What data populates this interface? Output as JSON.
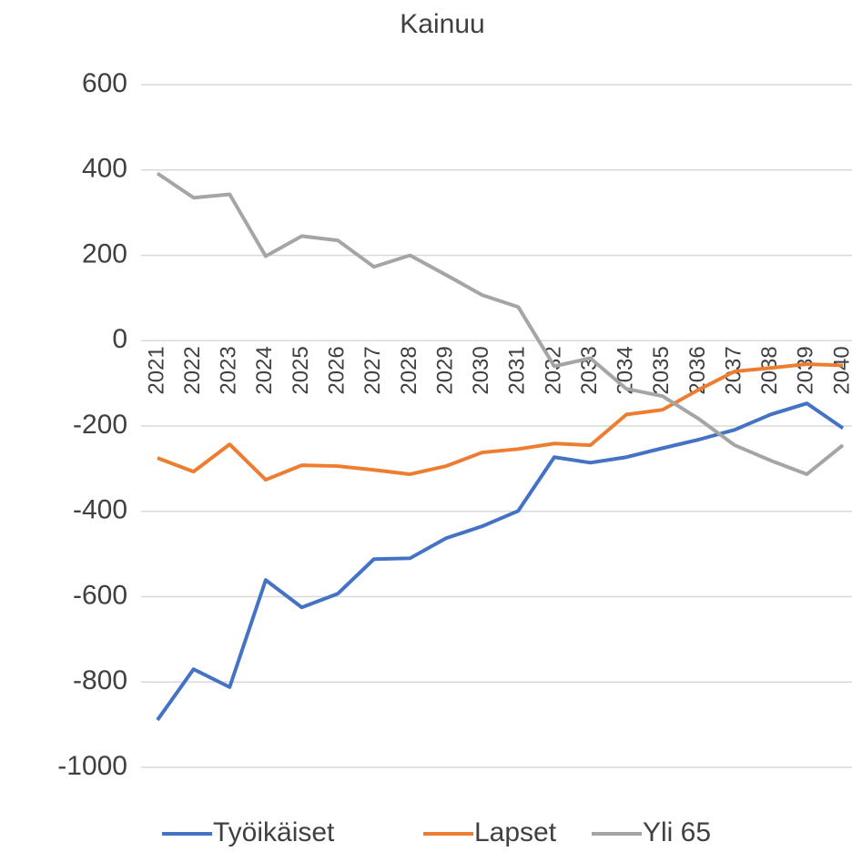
{
  "chart_data": {
    "type": "line",
    "title": "Kainuu",
    "categories": [
      "2021",
      "2022",
      "2023",
      "2024",
      "2025",
      "2026",
      "2027",
      "2028",
      "2029",
      "2030",
      "2031",
      "2032",
      "2033",
      "2034",
      "2035",
      "2036",
      "2037",
      "2038",
      "2039",
      "2040"
    ],
    "series": [
      {
        "name": "Työikäiset",
        "color": "#4472c4",
        "values": [
          -889,
          -770,
          -812,
          -561,
          -625,
          -593,
          -512,
          -510,
          -463,
          -435,
          -399,
          -273,
          -286,
          -273,
          -252,
          -232,
          -209,
          -173,
          -147,
          -205
        ]
      },
      {
        "name": "Lapset",
        "color": "#ed7d31",
        "values": [
          -275,
          -307,
          -243,
          -326,
          -292,
          -294,
          -303,
          -313,
          -294,
          -262,
          -254,
          -241,
          -245,
          -173,
          -162,
          -115,
          -72,
          -64,
          -55,
          -58
        ]
      },
      {
        "name": "Yli 65",
        "color": "#a5a5a5",
        "values": [
          392,
          335,
          343,
          198,
          245,
          235,
          173,
          200,
          154,
          107,
          79,
          -60,
          -41,
          -113,
          -130,
          -183,
          -245,
          -281,
          -313,
          -245
        ]
      }
    ],
    "ylim": [
      -1000,
      600
    ],
    "yticks": [
      -1000,
      -800,
      -600,
      -400,
      -200,
      0,
      200,
      400,
      600
    ],
    "grid": true,
    "legend": "bottom"
  }
}
